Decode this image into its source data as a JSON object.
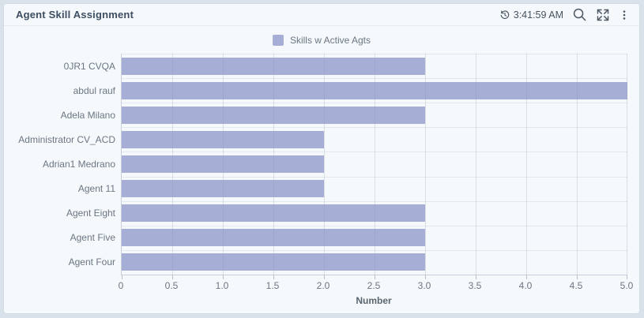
{
  "header": {
    "title": "Agent Skill Assignment",
    "time": "3:41:59 AM",
    "icons": [
      "clock-history-icon",
      "search-icon",
      "expand-icon",
      "kebab-menu-icon"
    ]
  },
  "legend": {
    "label": "Skills w Active Agts",
    "swatch_color": "#a6aed6"
  },
  "chart_data": {
    "type": "bar",
    "orientation": "horizontal",
    "title": "Agent Skill Assignment",
    "series_name": "Skills w Active Agts",
    "categories": [
      "0JR1 CVQA",
      "abdul rauf",
      "Adela Milano",
      "Administrator CV_ACD",
      "Adrian1 Medrano",
      "Agent 11",
      "Agent Eight",
      "Agent Five",
      "Agent Four"
    ],
    "values": [
      3,
      5,
      3,
      2,
      2,
      2,
      3,
      3,
      3
    ],
    "xlabel": "Number",
    "xlim": [
      0,
      5
    ],
    "x_ticks": [
      0,
      0.5,
      1,
      1.5,
      2,
      2.5,
      3,
      3.5,
      4,
      4.5,
      5
    ],
    "x_tick_labels": [
      "0",
      "0.5",
      "1.0",
      "1.5",
      "2.0",
      "2.5",
      "3.0",
      "3.5",
      "4.0",
      "4.5",
      "5.0"
    ],
    "bar_color": "#a6aed6",
    "grid": true,
    "legend_position": "top"
  }
}
